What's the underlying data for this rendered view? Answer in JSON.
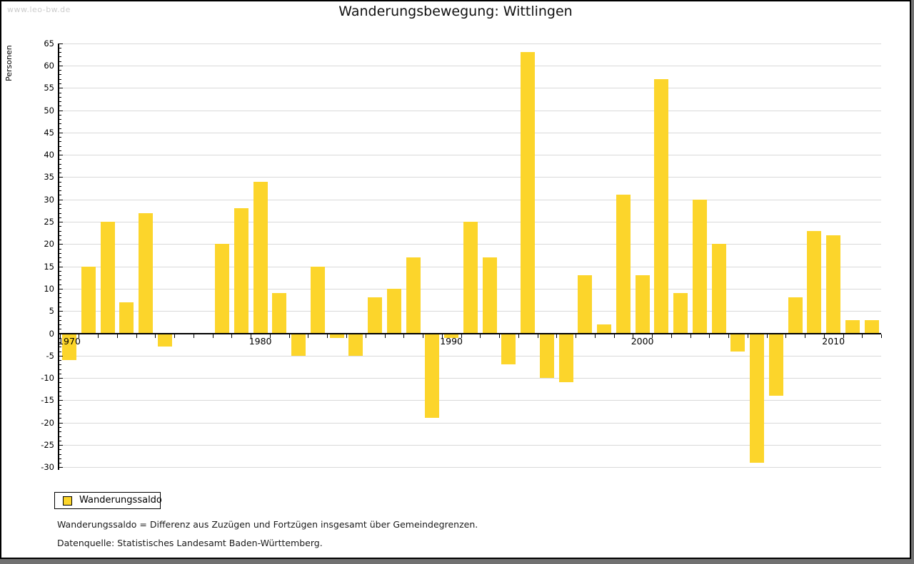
{
  "watermark": "www.leo-bw.de",
  "legend": {
    "label": "Wanderungssaldo"
  },
  "footnotes": [
    "Wanderungssaldo = Differenz aus Zuzügen und Fortzügen insgesamt über Gemeindegrenzen.",
    "Datenquelle: Statistisches Landesamt Baden-Württemberg."
  ],
  "chart_data": {
    "type": "bar",
    "title": "Wanderungsbewegung: Wittlingen",
    "ylabel": "Personen",
    "series_name": "Wanderungssaldo",
    "years": [
      1970,
      1971,
      1972,
      1973,
      1974,
      1975,
      1976,
      1977,
      1978,
      1979,
      1980,
      1981,
      1982,
      1983,
      1984,
      1985,
      1986,
      1987,
      1988,
      1989,
      1990,
      1991,
      1992,
      1993,
      1994,
      1995,
      1996,
      1997,
      1998,
      1999,
      2000,
      2001,
      2002,
      2003,
      2004,
      2005,
      2006,
      2007,
      2008,
      2009,
      2010,
      2011,
      2012
    ],
    "values": [
      -6,
      15,
      25,
      7,
      27,
      -3,
      0,
      0,
      20,
      28,
      34,
      9,
      -5,
      15,
      -1,
      -5,
      8,
      10,
      17,
      -19,
      -1,
      25,
      17,
      -7,
      63,
      -10,
      -11,
      13,
      2,
      31,
      13,
      57,
      9,
      30,
      20,
      -4,
      -29,
      -14,
      8,
      23,
      22,
      3,
      3
    ],
    "ylim": [
      -30,
      65
    ],
    "ytick_step": 5,
    "ytick_labels": [
      65,
      60,
      55,
      50,
      45,
      40,
      35,
      30,
      25,
      20,
      15,
      10,
      5,
      0,
      -5,
      -10,
      -15,
      -20,
      -25,
      -30
    ],
    "xticks": [
      1970,
      1980,
      1990,
      2000,
      2010
    ],
    "bar_color": "#FCD52B",
    "grid_color": "#d9d9d9",
    "grid": true,
    "legend_position": "bottom-left"
  }
}
